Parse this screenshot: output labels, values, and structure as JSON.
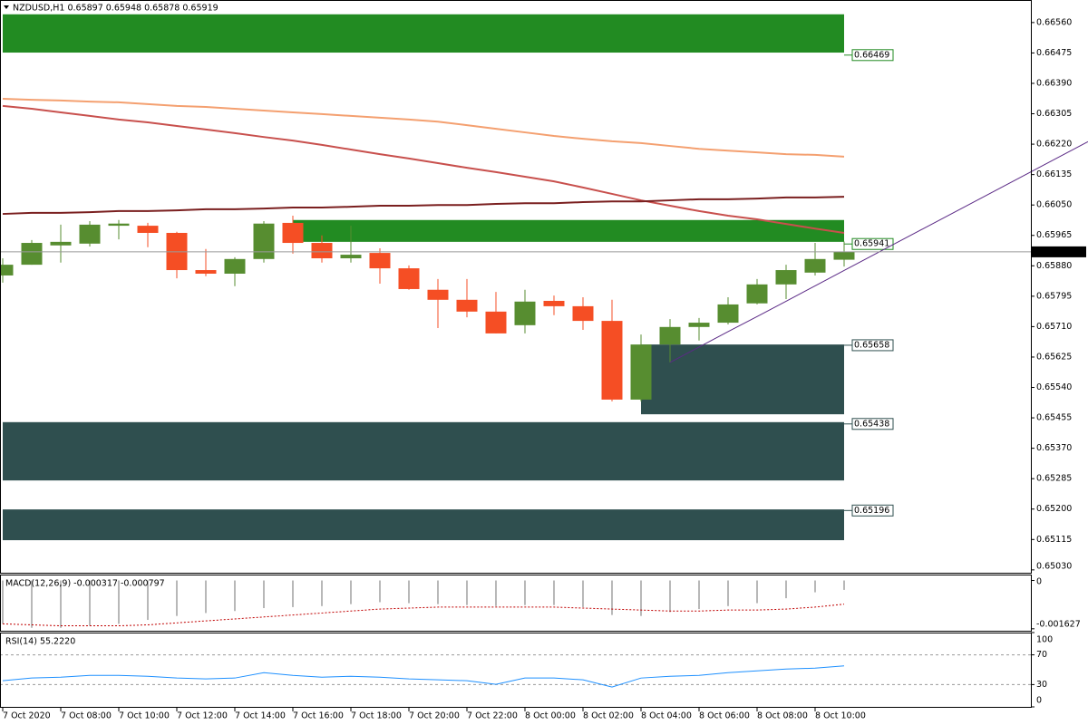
{
  "chart_data": [
    {
      "type": "candlestick",
      "title": "NZDUSD,H1 0.65897 0.65948 0.65878 0.65919",
      "categories": [
        "7 Oct 2020",
        null,
        "7 Oct 08:00",
        null,
        "7 Oct 10:00",
        null,
        "7 Oct 12:00",
        null,
        "7 Oct 14:00",
        null,
        "7 Oct 16:00",
        null,
        "7 Oct 18:00",
        null,
        "7 Oct 20:00",
        null,
        "7 Oct 22:00",
        null,
        "8 Oct 00:00",
        null,
        "8 Oct 02:00",
        null,
        "8 Oct 04:00",
        null,
        "8 Oct 06:00",
        null,
        "8 Oct 08:00",
        null,
        "8 Oct 10:00",
        null
      ],
      "ohlc": [
        [
          0.65853,
          0.65901,
          0.65833,
          0.65883
        ],
        [
          0.65883,
          0.65952,
          0.65883,
          0.65944
        ],
        [
          0.65937,
          0.65995,
          0.65889,
          0.65947
        ],
        [
          0.65942,
          0.66005,
          0.65934,
          0.65995
        ],
        [
          0.65992,
          0.66008,
          0.65954,
          0.65998
        ],
        [
          0.65992,
          0.66,
          0.65932,
          0.65972
        ],
        [
          0.65972,
          0.65975,
          0.65845,
          0.65868
        ],
        [
          0.65868,
          0.65927,
          0.65851,
          0.65858
        ],
        [
          0.65858,
          0.65904,
          0.65823,
          0.65899
        ],
        [
          0.65899,
          0.66005,
          0.65889,
          0.65998
        ],
        [
          0.66,
          0.6602,
          0.65914,
          0.65944
        ],
        [
          0.65944,
          0.65965,
          0.65889,
          0.65901
        ],
        [
          0.65901,
          0.65992,
          0.65889,
          0.65911
        ],
        [
          0.65916,
          0.65929,
          0.6583,
          0.65873
        ],
        [
          0.65873,
          0.65881,
          0.65813,
          0.65815
        ],
        [
          0.65813,
          0.65843,
          0.65706,
          0.65785
        ],
        [
          0.65785,
          0.65843,
          0.65736,
          0.65752
        ],
        [
          0.65752,
          0.65807,
          0.65691,
          0.65691
        ],
        [
          0.65714,
          0.65813,
          0.65691,
          0.6578
        ],
        [
          0.65782,
          0.65797,
          0.65742,
          0.65767
        ],
        [
          0.65767,
          0.65792,
          0.65701,
          0.65726
        ],
        [
          0.65726,
          0.65785,
          0.65501,
          0.65506
        ],
        [
          0.65506,
          0.65688,
          0.65501,
          0.6566
        ],
        [
          0.6566,
          0.65731,
          0.6561,
          0.65709
        ],
        [
          0.65709,
          0.65734,
          0.65671,
          0.65721
        ],
        [
          0.65721,
          0.65792,
          0.65716,
          0.65772
        ],
        [
          0.65775,
          0.65843,
          0.65772,
          0.65828
        ],
        [
          0.65828,
          0.65883,
          0.65787,
          0.65868
        ],
        [
          0.65861,
          0.65944,
          0.65853,
          0.65899
        ],
        [
          0.65897,
          0.65948,
          0.65878,
          0.65919
        ]
      ],
      "up_color": "#578d30",
      "down_color": "#f54e24",
      "ylim": [
        0.65022,
        0.66623
      ],
      "yticks": [
        {
          "value": 0.6656,
          "label": "0.66560"
        },
        0.66475,
        {
          "value": 0.6639,
          "label": "0.66390"
        },
        0.66305,
        {
          "value": 0.6622,
          "label": "0.66220"
        },
        0.66135,
        {
          "value": 0.6605,
          "label": "0.66050"
        },
        0.65965,
        {
          "value": 0.6588,
          "label": "0.65880"
        },
        0.65795,
        {
          "value": 0.6571,
          "label": "0.65710"
        },
        0.65625,
        {
          "value": 0.6554,
          "label": "0.65540"
        },
        0.65455,
        {
          "value": 0.6537,
          "label": "0.65370"
        },
        0.65285,
        {
          "value": 0.652,
          "label": "0.65200"
        },
        0.65115,
        {
          "value": 0.6503,
          "label": "0.65030"
        }
      ],
      "zones": [
        {
          "color": "#228b22",
          "high": 0.66583,
          "low": 0.66476,
          "level": 0.66469,
          "start": "7 Oct 2020"
        },
        {
          "color": "#228b22",
          "high": 0.66008,
          "low": 0.65947,
          "level": 0.65941,
          "start": "7 Oct 16:00"
        },
        {
          "color": "#2f4f4f",
          "high": 0.6566,
          "low": 0.65465,
          "level": 0.65658,
          "start": "8 Oct 04:00"
        },
        {
          "color": "#2f4f4f",
          "high": 0.65443,
          "low": 0.6528,
          "level": 0.65438,
          "start": "7 Oct 2020"
        },
        {
          "color": "#2f4f4f",
          "high": 0.65199,
          "low": 0.65113,
          "level": 0.65196,
          "start": "7 Oct 2020"
        }
      ],
      "lines": [
        {
          "color": "#f4a070",
          "values": [
            0.66347,
            0.66344,
            0.66342,
            0.66339,
            0.66337,
            0.66332,
            0.66327,
            0.66324,
            0.66319,
            0.66314,
            0.66309,
            0.66304,
            0.66299,
            0.66294,
            0.66289,
            0.66283,
            0.66273,
            0.66263,
            0.66253,
            0.66243,
            0.66235,
            0.66228,
            0.66223,
            0.66215,
            0.66207,
            0.66202,
            0.66197,
            0.66192,
            0.6619,
            0.66185
          ]
        },
        {
          "color": "#c8504d",
          "values": [
            0.66327,
            0.66319,
            0.66309,
            0.66299,
            0.66289,
            0.66281,
            0.66271,
            0.66261,
            0.66251,
            0.6624,
            0.6623,
            0.66218,
            0.66205,
            0.66192,
            0.6618,
            0.66167,
            0.66154,
            0.66142,
            0.66129,
            0.66116,
            0.66099,
            0.66081,
            0.66063,
            0.66048,
            0.66033,
            0.6602,
            0.6601,
            0.65997,
            0.65984,
            0.65972
          ]
        },
        {
          "color": "#7a1f1f",
          "values": [
            0.66025,
            0.66028,
            0.66028,
            0.6603,
            0.66033,
            0.66033,
            0.66035,
            0.66038,
            0.66038,
            0.6604,
            0.66043,
            0.66043,
            0.66045,
            0.66048,
            0.66048,
            0.6605,
            0.6605,
            0.66053,
            0.66055,
            0.66055,
            0.66058,
            0.6606,
            0.6606,
            0.66063,
            0.66066,
            0.66066,
            0.66068,
            0.66071,
            0.66071,
            0.66073
          ]
        }
      ],
      "trendline": {
        "color": "#5b2a86",
        "values": [
          null,
          null,
          null,
          null,
          null,
          null,
          null,
          null,
          null,
          null,
          null,
          null,
          null,
          null,
          null,
          null,
          null,
          null,
          null,
          null,
          null,
          null,
          null,
          0.6561,
          0.65653,
          0.65696,
          0.65738,
          0.65781,
          0.65824,
          0.65867
        ]
      },
      "price_line_color": "#9a9a9a"
    },
    {
      "type": "macd",
      "title": "MACD(12,26,9) -0.000317 -0.000797",
      "ylim": [
        -0.001693,
        0.000199
      ],
      "yticks": [
        0,
        -0.001627
      ],
      "series": [
        {
          "type": "bar",
          "color": "#b8b8b8",
          "values": [
            -0.001461,
            -0.001594,
            -0.001594,
            -0.001527,
            -0.001461,
            -0.001328,
            -0.001195,
            -0.001096,
            -0.001029,
            -0.00093,
            -0.000897,
            -0.000863,
            -0.000797,
            -0.000731,
            -0.000764,
            -0.000797,
            -0.00083,
            -0.000863,
            -0.00083,
            -0.00083,
            -0.000897,
            -0.001162,
            -0.001195,
            -0.001063,
            -0.000963,
            -0.000863,
            -0.000764,
            -0.000598,
            -0.000398,
            -0.000317
          ]
        },
        {
          "type": "line",
          "dash": true,
          "color": "#c00000",
          "values": [
            -0.001461,
            -0.001494,
            -0.001527,
            -0.001527,
            -0.001527,
            -0.001494,
            -0.001428,
            -0.001361,
            -0.001295,
            -0.001229,
            -0.001162,
            -0.001096,
            -0.001029,
            -0.000963,
            -0.00093,
            -0.000897,
            -0.000897,
            -0.000897,
            -0.000897,
            -0.000897,
            -0.00093,
            -0.000963,
            -0.000996,
            -0.001029,
            -0.001029,
            -0.000996,
            -0.000996,
            -0.000963,
            -0.000897,
            -0.000797
          ]
        }
      ]
    },
    {
      "type": "rsi",
      "title": "RSI(14) 55.2220",
      "ylim": [
        0,
        100
      ],
      "yticks": [
        100,
        70,
        30,
        0
      ],
      "grid": true,
      "series": [
        {
          "type": "line",
          "color": "#1e90ff",
          "values": [
            35.2,
            38.8,
            40.0,
            42.4,
            42.4,
            41.2,
            38.8,
            37.6,
            38.8,
            46.1,
            42.4,
            40.0,
            41.2,
            40.0,
            37.6,
            36.4,
            35.2,
            30.3,
            38.8,
            38.8,
            36.4,
            26.7,
            38.8,
            41.2,
            42.4,
            46.1,
            48.5,
            50.9,
            52.1,
            55.222
          ]
        }
      ]
    }
  ]
}
